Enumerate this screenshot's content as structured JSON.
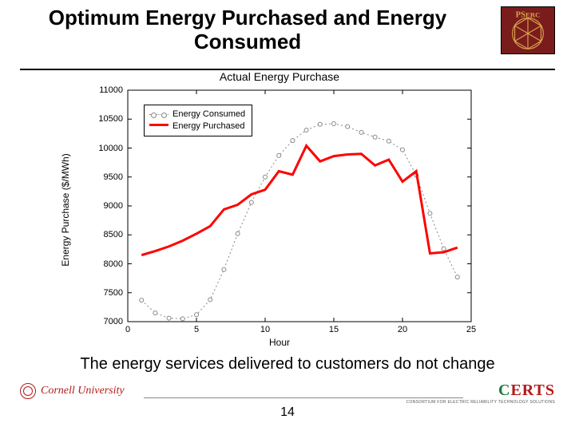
{
  "title": "Optimum Energy Purchased and Energy Consumed",
  "caption": "The energy services delivered to customers do not change",
  "page_number": "14",
  "footer": {
    "left_text": "Cornell University",
    "right_text": "CERTS",
    "right_tagline": "CONSORTIUM FOR ELECTRIC RELIABILITY TECHNOLOGY SOLUTIONS",
    "certs_color_left": "#1a7a3a",
    "certs_color_right": "#b31b1b"
  },
  "logo": {
    "text": "PSERC",
    "bg": "#7a1c1c",
    "fg": "#d9a34a"
  },
  "chart": {
    "type": "line",
    "title": "Actual Energy Purchase",
    "xlabel": "Hour",
    "ylabel": "Energy Purchase ($/MWh)",
    "xlim": [
      0,
      25
    ],
    "ylim": [
      7000,
      11000
    ],
    "xticks": [
      0,
      5,
      10,
      15,
      20,
      25
    ],
    "yticks": [
      7000,
      7500,
      8000,
      8500,
      9000,
      9500,
      10000,
      10500,
      11000
    ],
    "background_color": "#ffffff",
    "axis_color": "#000000",
    "tick_fontsize": 11,
    "label_fontsize": 12,
    "title_fontsize": 14,
    "legend": {
      "position": "upper-left",
      "border": "#000000",
      "items": [
        {
          "label": "Energy Consumed",
          "key": "consumed"
        },
        {
          "label": "Energy Purchased",
          "key": "purchased"
        }
      ]
    },
    "series": {
      "consumed": {
        "color": "#888888",
        "line_style": "dotted",
        "line_width": 1,
        "marker": "circle-open",
        "marker_size": 5,
        "x": [
          1,
          2,
          3,
          4,
          5,
          6,
          7,
          8,
          9,
          10,
          11,
          12,
          13,
          14,
          15,
          16,
          17,
          18,
          19,
          20,
          21,
          22,
          23,
          24
        ],
        "y": [
          7370,
          7150,
          7060,
          7050,
          7120,
          7380,
          7900,
          8520,
          9060,
          9500,
          9870,
          10130,
          10310,
          10410,
          10420,
          10370,
          10270,
          10190,
          10120,
          9970,
          9530,
          8870,
          8260,
          7770
        ]
      },
      "purchased": {
        "color": "#ff0000",
        "line_style": "solid",
        "line_width": 3,
        "marker": "none",
        "x": [
          1,
          2,
          3,
          4,
          5,
          6,
          7,
          8,
          9,
          10,
          11,
          12,
          13,
          14,
          15,
          16,
          17,
          18,
          19,
          20,
          21,
          22,
          23,
          24
        ],
        "y": [
          8150,
          8220,
          8300,
          8400,
          8520,
          8650,
          8940,
          9020,
          9200,
          9280,
          9600,
          9540,
          10040,
          9770,
          9860,
          9890,
          9900,
          9700,
          9800,
          9420,
          9600,
          8180,
          8200,
          8280
        ]
      }
    }
  }
}
